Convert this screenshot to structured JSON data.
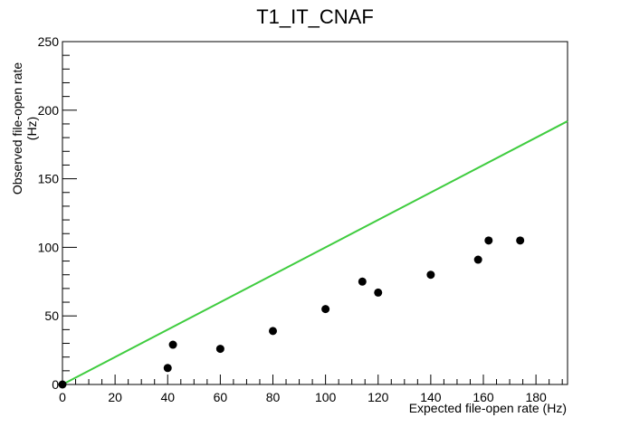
{
  "chart_data": {
    "type": "scatter",
    "title": "T1_IT_CNAF",
    "xlabel": "Expected file-open rate (Hz)",
    "ylabel": "Observed file-open rate (Hz)",
    "xlim": [
      0,
      192
    ],
    "ylim": [
      0,
      250
    ],
    "x_ticks": [
      0,
      20,
      40,
      60,
      80,
      100,
      120,
      140,
      160,
      180
    ],
    "y_ticks": [
      0,
      50,
      100,
      150,
      200,
      250
    ],
    "grid": false,
    "series": [
      {
        "type": "scatter",
        "color": "#000000",
        "points": [
          {
            "x": 0,
            "y": 0
          },
          {
            "x": 40,
            "y": 12
          },
          {
            "x": 42,
            "y": 29
          },
          {
            "x": 60,
            "y": 26
          },
          {
            "x": 80,
            "y": 39
          },
          {
            "x": 100,
            "y": 55
          },
          {
            "x": 114,
            "y": 75
          },
          {
            "x": 120,
            "y": 67
          },
          {
            "x": 140,
            "y": 80
          },
          {
            "x": 158,
            "y": 91
          },
          {
            "x": 162,
            "y": 105
          },
          {
            "x": 174,
            "y": 105
          }
        ]
      },
      {
        "type": "line",
        "color": "#3fcc3f",
        "points": [
          {
            "x": 0,
            "y": 0
          },
          {
            "x": 192,
            "y": 192
          }
        ]
      }
    ]
  }
}
